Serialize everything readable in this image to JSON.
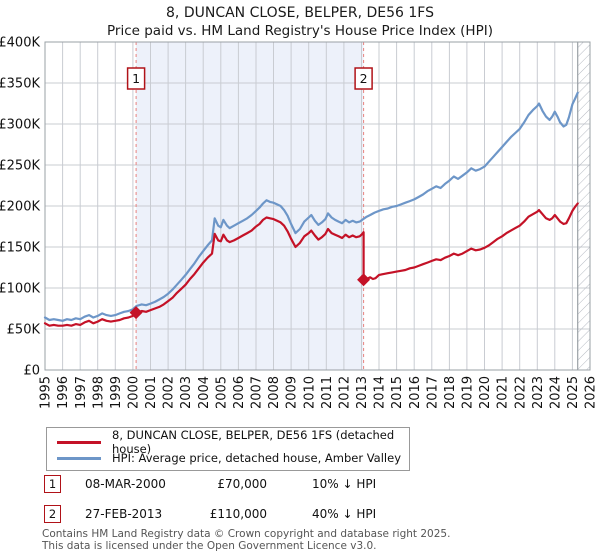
{
  "chart_data": {
    "type": "line",
    "title": "8, DUNCAN CLOSE, BELPER, DE56 1FS",
    "subtitle": "Price paid vs. HM Land Registry's House Price Index (HPI)",
    "xlabel": "",
    "ylabel": "",
    "units": "series point values are GBP thousands",
    "x_range": [
      1995,
      2026
    ],
    "y_range_gbp": [
      0,
      400000
    ],
    "grid": true,
    "legend_position": "below",
    "x_ticks": [
      1995,
      1996,
      1997,
      1998,
      1999,
      2000,
      2001,
      2002,
      2003,
      2004,
      2005,
      2006,
      2007,
      2008,
      2009,
      2010,
      2011,
      2012,
      2013,
      2014,
      2015,
      2016,
      2017,
      2018,
      2019,
      2020,
      2021,
      2022,
      2023,
      2024,
      2025,
      2026
    ],
    "y_ticks": [
      {
        "value_k": 0,
        "label": "£0"
      },
      {
        "value_k": 50,
        "label": "£50K"
      },
      {
        "value_k": 100,
        "label": "£100K"
      },
      {
        "value_k": 150,
        "label": "£150K"
      },
      {
        "value_k": 200,
        "label": "£200K"
      },
      {
        "value_k": 250,
        "label": "£250K"
      },
      {
        "value_k": 300,
        "label": "£300K"
      },
      {
        "value_k": 350,
        "label": "£350K"
      },
      {
        "value_k": 400,
        "label": "£400K"
      }
    ],
    "shaded_region_years": [
      2000.18,
      2013.12
    ],
    "hatched_future_region_years": [
      2025.3,
      2026
    ],
    "sale_markers": [
      {
        "label": "1",
        "year": 2000.18,
        "value_k": 70
      },
      {
        "label": "2",
        "year": 2013.12,
        "value_k": 110
      }
    ],
    "series": [
      {
        "name": "HPI: Average price, detached house, Amber Valley",
        "color": "#6d96c8",
        "points": [
          [
            1995.0,
            64
          ],
          [
            1995.25,
            61
          ],
          [
            1995.5,
            62
          ],
          [
            1995.75,
            61
          ],
          [
            1996.0,
            60
          ],
          [
            1996.25,
            62
          ],
          [
            1996.5,
            61
          ],
          [
            1996.75,
            63
          ],
          [
            1997.0,
            62
          ],
          [
            1997.25,
            65
          ],
          [
            1997.5,
            67
          ],
          [
            1997.75,
            64
          ],
          [
            1998.0,
            66
          ],
          [
            1998.25,
            69
          ],
          [
            1998.5,
            67
          ],
          [
            1998.75,
            66
          ],
          [
            1999.0,
            67
          ],
          [
            1999.25,
            69
          ],
          [
            1999.5,
            71
          ],
          [
            1999.75,
            72
          ],
          [
            2000.0,
            74
          ],
          [
            2000.2,
            78
          ],
          [
            2000.5,
            80
          ],
          [
            2000.75,
            79
          ],
          [
            2001.0,
            81
          ],
          [
            2001.25,
            83
          ],
          [
            2001.5,
            86
          ],
          [
            2001.75,
            89
          ],
          [
            2002.0,
            93
          ],
          [
            2002.25,
            98
          ],
          [
            2002.5,
            104
          ],
          [
            2002.75,
            110
          ],
          [
            2003.0,
            116
          ],
          [
            2003.25,
            123
          ],
          [
            2003.5,
            130
          ],
          [
            2003.75,
            138
          ],
          [
            2004.0,
            145
          ],
          [
            2004.25,
            152
          ],
          [
            2004.5,
            158
          ],
          [
            2004.65,
            185
          ],
          [
            2004.85,
            176
          ],
          [
            2005.0,
            174
          ],
          [
            2005.15,
            183
          ],
          [
            2005.35,
            176
          ],
          [
            2005.5,
            173
          ],
          [
            2005.75,
            176
          ],
          [
            2006.0,
            179
          ],
          [
            2006.25,
            182
          ],
          [
            2006.5,
            185
          ],
          [
            2006.75,
            189
          ],
          [
            2007.0,
            194
          ],
          [
            2007.2,
            198
          ],
          [
            2007.4,
            203
          ],
          [
            2007.6,
            207
          ],
          [
            2007.8,
            205
          ],
          [
            2008.0,
            204
          ],
          [
            2008.2,
            202
          ],
          [
            2008.4,
            200
          ],
          [
            2008.6,
            195
          ],
          [
            2008.8,
            188
          ],
          [
            2009.0,
            178
          ],
          [
            2009.25,
            167
          ],
          [
            2009.5,
            172
          ],
          [
            2009.75,
            181
          ],
          [
            2010.0,
            186
          ],
          [
            2010.15,
            189
          ],
          [
            2010.35,
            182
          ],
          [
            2010.55,
            177
          ],
          [
            2010.75,
            180
          ],
          [
            2010.95,
            184
          ],
          [
            2011.1,
            191
          ],
          [
            2011.3,
            186
          ],
          [
            2011.5,
            183
          ],
          [
            2011.7,
            181
          ],
          [
            2011.9,
            179
          ],
          [
            2012.1,
            183
          ],
          [
            2012.3,
            180
          ],
          [
            2012.5,
            182
          ],
          [
            2012.7,
            180
          ],
          [
            2012.9,
            181
          ],
          [
            2013.1,
            184
          ],
          [
            2013.3,
            187
          ],
          [
            2013.5,
            189
          ],
          [
            2013.75,
            192
          ],
          [
            2014.0,
            194
          ],
          [
            2014.25,
            196
          ],
          [
            2014.5,
            197
          ],
          [
            2014.75,
            199
          ],
          [
            2015.0,
            200
          ],
          [
            2015.25,
            202
          ],
          [
            2015.5,
            204
          ],
          [
            2015.75,
            206
          ],
          [
            2016.0,
            208
          ],
          [
            2016.25,
            211
          ],
          [
            2016.5,
            214
          ],
          [
            2016.75,
            218
          ],
          [
            2017.0,
            221
          ],
          [
            2017.25,
            224
          ],
          [
            2017.5,
            222
          ],
          [
            2017.75,
            227
          ],
          [
            2018.0,
            231
          ],
          [
            2018.25,
            236
          ],
          [
            2018.5,
            233
          ],
          [
            2018.75,
            237
          ],
          [
            2019.0,
            241
          ],
          [
            2019.25,
            246
          ],
          [
            2019.5,
            243
          ],
          [
            2019.75,
            245
          ],
          [
            2020.0,
            248
          ],
          [
            2020.25,
            254
          ],
          [
            2020.5,
            260
          ],
          [
            2020.75,
            266
          ],
          [
            2021.0,
            272
          ],
          [
            2021.25,
            278
          ],
          [
            2021.5,
            284
          ],
          [
            2021.75,
            289
          ],
          [
            2022.0,
            294
          ],
          [
            2022.25,
            302
          ],
          [
            2022.5,
            311
          ],
          [
            2022.75,
            317
          ],
          [
            2023.0,
            322
          ],
          [
            2023.1,
            325
          ],
          [
            2023.3,
            316
          ],
          [
            2023.5,
            309
          ],
          [
            2023.7,
            305
          ],
          [
            2023.85,
            309
          ],
          [
            2024.0,
            315
          ],
          [
            2024.15,
            309
          ],
          [
            2024.3,
            302
          ],
          [
            2024.5,
            297
          ],
          [
            2024.65,
            299
          ],
          [
            2024.8,
            308
          ],
          [
            2025.0,
            324
          ],
          [
            2025.15,
            331
          ],
          [
            2025.3,
            338
          ]
        ]
      },
      {
        "name": "8, DUNCAN CLOSE, BELPER, DE56 1FS (detached house)",
        "color": "#c41227",
        "points": [
          [
            1995.0,
            57
          ],
          [
            1995.25,
            54
          ],
          [
            1995.5,
            55
          ],
          [
            1995.75,
            54
          ],
          [
            1996.0,
            54
          ],
          [
            1996.25,
            55
          ],
          [
            1996.5,
            54
          ],
          [
            1996.75,
            56
          ],
          [
            1997.0,
            55
          ],
          [
            1997.25,
            58
          ],
          [
            1997.5,
            60
          ],
          [
            1997.75,
            57
          ],
          [
            1998.0,
            59
          ],
          [
            1998.25,
            62
          ],
          [
            1998.5,
            60
          ],
          [
            1998.75,
            59
          ],
          [
            1999.0,
            60
          ],
          [
            1999.25,
            61
          ],
          [
            1999.5,
            63
          ],
          [
            1999.75,
            64
          ],
          [
            2000.0,
            66
          ],
          [
            2000.18,
            70
          ],
          [
            2000.5,
            72
          ],
          [
            2000.75,
            71
          ],
          [
            2001.0,
            73
          ],
          [
            2001.25,
            75
          ],
          [
            2001.5,
            77
          ],
          [
            2001.75,
            80
          ],
          [
            2002.0,
            84
          ],
          [
            2002.25,
            88
          ],
          [
            2002.5,
            94
          ],
          [
            2002.75,
            99
          ],
          [
            2003.0,
            104
          ],
          [
            2003.25,
            111
          ],
          [
            2003.5,
            117
          ],
          [
            2003.75,
            124
          ],
          [
            2004.0,
            131
          ],
          [
            2004.25,
            137
          ],
          [
            2004.5,
            142
          ],
          [
            2004.65,
            166
          ],
          [
            2004.85,
            158
          ],
          [
            2005.0,
            157
          ],
          [
            2005.15,
            165
          ],
          [
            2005.35,
            158
          ],
          [
            2005.5,
            156
          ],
          [
            2005.75,
            158
          ],
          [
            2006.0,
            161
          ],
          [
            2006.25,
            164
          ],
          [
            2006.5,
            167
          ],
          [
            2006.75,
            170
          ],
          [
            2007.0,
            175
          ],
          [
            2007.2,
            178
          ],
          [
            2007.4,
            183
          ],
          [
            2007.6,
            186
          ],
          [
            2007.8,
            185
          ],
          [
            2008.0,
            184
          ],
          [
            2008.2,
            182
          ],
          [
            2008.4,
            180
          ],
          [
            2008.6,
            176
          ],
          [
            2008.8,
            169
          ],
          [
            2009.0,
            160
          ],
          [
            2009.25,
            150
          ],
          [
            2009.5,
            155
          ],
          [
            2009.75,
            163
          ],
          [
            2010.0,
            167
          ],
          [
            2010.15,
            170
          ],
          [
            2010.35,
            164
          ],
          [
            2010.55,
            159
          ],
          [
            2010.75,
            162
          ],
          [
            2010.95,
            166
          ],
          [
            2011.1,
            172
          ],
          [
            2011.3,
            167
          ],
          [
            2011.5,
            165
          ],
          [
            2011.7,
            163
          ],
          [
            2011.9,
            161
          ],
          [
            2012.1,
            165
          ],
          [
            2012.3,
            162
          ],
          [
            2012.5,
            164
          ],
          [
            2012.7,
            162
          ],
          [
            2012.9,
            163
          ],
          [
            2013.05,
            166
          ],
          [
            2013.12,
            168
          ],
          [
            2013.12,
            110
          ],
          [
            2013.3,
            111
          ],
          [
            2013.5,
            113
          ],
          [
            2013.65,
            111
          ],
          [
            2013.8,
            112
          ],
          [
            2014.0,
            116
          ],
          [
            2014.25,
            117
          ],
          [
            2014.5,
            118
          ],
          [
            2014.75,
            119
          ],
          [
            2015.0,
            120
          ],
          [
            2015.25,
            121
          ],
          [
            2015.5,
            122
          ],
          [
            2015.75,
            124
          ],
          [
            2016.0,
            125
          ],
          [
            2016.25,
            127
          ],
          [
            2016.5,
            129
          ],
          [
            2016.75,
            131
          ],
          [
            2017.0,
            133
          ],
          [
            2017.25,
            135
          ],
          [
            2017.5,
            134
          ],
          [
            2017.75,
            137
          ],
          [
            2018.0,
            139
          ],
          [
            2018.25,
            142
          ],
          [
            2018.5,
            140
          ],
          [
            2018.75,
            142
          ],
          [
            2019.0,
            145
          ],
          [
            2019.25,
            148
          ],
          [
            2019.5,
            146
          ],
          [
            2019.75,
            147
          ],
          [
            2020.0,
            149
          ],
          [
            2020.25,
            152
          ],
          [
            2020.5,
            156
          ],
          [
            2020.75,
            160
          ],
          [
            2021.0,
            163
          ],
          [
            2021.25,
            167
          ],
          [
            2021.5,
            170
          ],
          [
            2021.75,
            173
          ],
          [
            2022.0,
            176
          ],
          [
            2022.25,
            181
          ],
          [
            2022.5,
            187
          ],
          [
            2022.75,
            190
          ],
          [
            2023.0,
            193
          ],
          [
            2023.1,
            195
          ],
          [
            2023.3,
            190
          ],
          [
            2023.5,
            185
          ],
          [
            2023.7,
            183
          ],
          [
            2023.85,
            185
          ],
          [
            2024.0,
            189
          ],
          [
            2024.15,
            185
          ],
          [
            2024.3,
            181
          ],
          [
            2024.5,
            178
          ],
          [
            2024.65,
            179
          ],
          [
            2024.8,
            185
          ],
          [
            2025.0,
            194
          ],
          [
            2025.15,
            199
          ],
          [
            2025.3,
            203
          ]
        ]
      }
    ]
  },
  "legend": [
    {
      "label": "8, DUNCAN CLOSE, BELPER, DE56 1FS (detached house)",
      "color": "#c41227"
    },
    {
      "label": "HPI: Average price, detached house, Amber Valley",
      "color": "#6d96c8"
    }
  ],
  "transactions": [
    {
      "num": "1",
      "date": "08-MAR-2000",
      "price": "£70,000",
      "vs_hpi": "10% ↓ HPI"
    },
    {
      "num": "2",
      "date": "27-FEB-2013",
      "price": "£110,000",
      "vs_hpi": "40% ↓ HPI"
    }
  ],
  "footer": {
    "line1": "Contains HM Land Registry data © Crown copyright and database right 2025.",
    "line2": "This data is licensed under the Open Government Licence v3.0."
  },
  "colors": {
    "property_line": "#c41227",
    "hpi_line": "#6d96c8",
    "shade": "#edf1fa",
    "grid": "#c9ccd2",
    "plot_border": "#9aa0a6",
    "dashed_marker_line": "#e8837f",
    "hatch": "#b6bac2",
    "marker_box_border": "#b01218",
    "tick_text": "#111111",
    "footer_text": "#555555"
  }
}
